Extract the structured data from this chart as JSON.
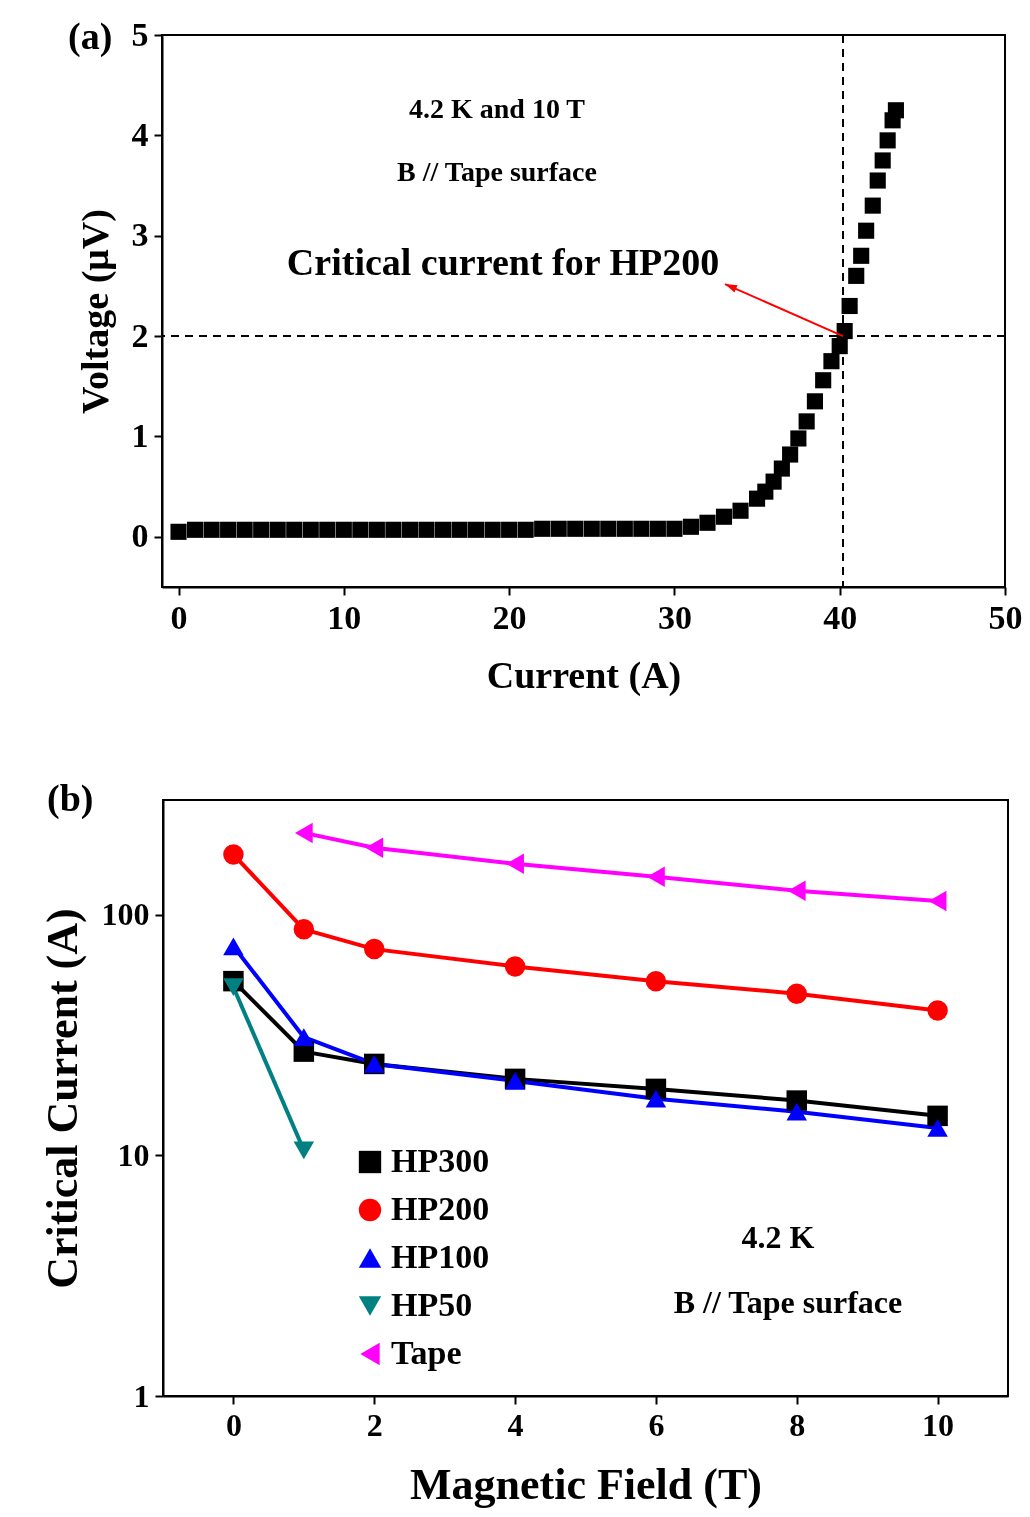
{
  "chart_data": [
    {
      "type": "scatter",
      "title": "(a)",
      "xlabel": "Current (A)",
      "ylabel": "Voltage (μV)",
      "marker": "square",
      "grid": false,
      "xlim": [
        -1,
        50
      ],
      "ylim": [
        -0.5,
        5
      ],
      "xticks": [
        0,
        10,
        20,
        30,
        40,
        50
      ],
      "yticks": [
        0,
        1,
        2,
        3,
        4,
        5
      ],
      "ref_lines": [
        {
          "axis": "x",
          "value": 40.2,
          "line_style": "dashed",
          "color": "#000000"
        },
        {
          "axis": "y",
          "value": 2,
          "line_style": "dashed",
          "color": "#000000"
        }
      ],
      "annotations": [
        "4.2 K and 10 T",
        "B // Tape surface",
        {
          "text": "Critical current for HP200",
          "x": 40.2,
          "y": 2
        }
      ],
      "series": [
        {
          "color": "#000000",
          "x": [
            0,
            1,
            2,
            3,
            4,
            5,
            6,
            7,
            8,
            9,
            10,
            11,
            12,
            13,
            14,
            15,
            16,
            17,
            18,
            19,
            20,
            21,
            22,
            23,
            24,
            25,
            26,
            27,
            28,
            29,
            30,
            31,
            32,
            33,
            34,
            35,
            35.5,
            36,
            36.5,
            37,
            37.5,
            38,
            38.5,
            39,
            39.5,
            40,
            40.3,
            40.6,
            41,
            41.3,
            41.6,
            42,
            42.3,
            42.6,
            42.9,
            43.2,
            43.4
          ],
          "values": [
            0.05,
            0.07,
            0.07,
            0.07,
            0.07,
            0.07,
            0.07,
            0.07,
            0.07,
            0.07,
            0.07,
            0.07,
            0.07,
            0.07,
            0.07,
            0.07,
            0.07,
            0.07,
            0.07,
            0.07,
            0.07,
            0.07,
            0.08,
            0.08,
            0.08,
            0.08,
            0.08,
            0.08,
            0.08,
            0.08,
            0.08,
            0.1,
            0.14,
            0.2,
            0.26,
            0.38,
            0.45,
            0.55,
            0.68,
            0.82,
            0.98,
            1.15,
            1.35,
            1.56,
            1.75,
            1.9,
            2.05,
            2.3,
            2.6,
            2.8,
            3.05,
            3.3,
            3.55,
            3.75,
            3.95,
            4.15,
            4.25
          ]
        }
      ]
    },
    {
      "type": "line",
      "title": "(b)",
      "xlabel": "Magnetic Field (T)",
      "ylabel": "Critical Current (A)",
      "log": "y",
      "grid": false,
      "legend": "bottom left",
      "xlim": [
        -1,
        11
      ],
      "ylim": [
        1,
        300
      ],
      "xticks": [
        0,
        2,
        4,
        6,
        8,
        10
      ],
      "yticks": [
        1,
        10,
        100
      ],
      "annotations": [
        "4.2 K",
        "B // Tape surface"
      ],
      "series": [
        {
          "name": "HP300",
          "color": "#000000",
          "marker": "square",
          "x": [
            0,
            1,
            2,
            4,
            6,
            8,
            10
          ],
          "values": [
            53,
            27,
            24,
            20.8,
            18.9,
            16.9,
            14.6
          ]
        },
        {
          "name": "HP200",
          "color": "#ff0000",
          "marker": "circle",
          "x": [
            0,
            1,
            2,
            4,
            6,
            8,
            10
          ],
          "values": [
            178,
            87,
            72,
            61,
            53,
            47,
            40
          ]
        },
        {
          "name": "HP100",
          "color": "#0000ff",
          "marker": "triangle",
          "x": [
            0,
            1,
            2,
            4,
            6,
            8,
            10
          ],
          "values": [
            74,
            31,
            24,
            20.4,
            17.2,
            15.2,
            13
          ]
        },
        {
          "name": "HP50",
          "color": "#008080",
          "marker": "triangle-down",
          "x": [
            0,
            1
          ],
          "values": [
            50,
            10.5
          ]
        },
        {
          "name": "Tape",
          "color": "#ff00ff",
          "marker": "triangle-left",
          "x": [
            1,
            2,
            4,
            6,
            8,
            10
          ],
          "values": [
            219,
            190,
            163,
            144,
            126,
            114
          ]
        }
      ]
    }
  ]
}
